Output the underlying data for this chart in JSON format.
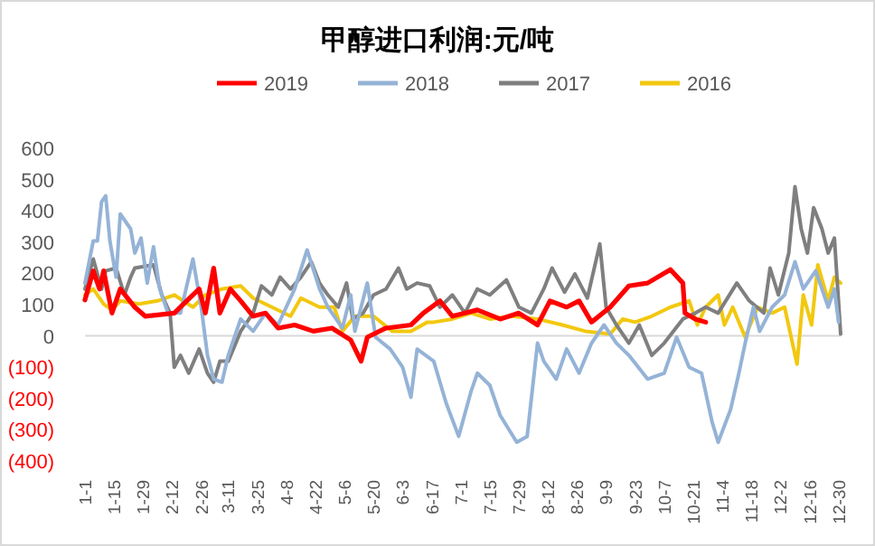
{
  "chart_data": {
    "type": "line",
    "title": "甲醇进口利润:元/吨",
    "legend": "top",
    "grid": false,
    "xlim": [
      "--01-01",
      "--12-31"
    ],
    "xticks": [
      {
        "value": "--01-01",
        "label": "1-1"
      },
      {
        "value": "--01-15",
        "label": "1-15"
      },
      {
        "value": "--01-29",
        "label": "1-29"
      },
      {
        "value": "--02-12",
        "label": "2-12"
      },
      {
        "value": "--02-26",
        "label": "2-26"
      },
      {
        "value": "--03-11",
        "label": "3-11"
      },
      {
        "value": "--03-25",
        "label": "3-25"
      },
      {
        "value": "--04-08",
        "label": "4-8"
      },
      {
        "value": "--04-22",
        "label": "4-22"
      },
      {
        "value": "--05-06",
        "label": "5-6"
      },
      {
        "value": "--05-20",
        "label": "5-20"
      },
      {
        "value": "--06-03",
        "label": "6-3"
      },
      {
        "value": "--06-17",
        "label": "6-17"
      },
      {
        "value": "--07-01",
        "label": "7-1"
      },
      {
        "value": "--07-15",
        "label": "7-15"
      },
      {
        "value": "--07-29",
        "label": "7-29"
      },
      {
        "value": "--08-12",
        "label": "8-12"
      },
      {
        "value": "--08-26",
        "label": "8-26"
      },
      {
        "value": "--09-09",
        "label": "9-9"
      },
      {
        "value": "--09-23",
        "label": "9-23"
      },
      {
        "value": "--10-07",
        "label": "10-7"
      },
      {
        "value": "--10-21",
        "label": "10-21"
      },
      {
        "value": "--11-04",
        "label": "11-4"
      },
      {
        "value": "--11-18",
        "label": "11-18"
      },
      {
        "value": "--12-02",
        "label": "12-2"
      },
      {
        "value": "--12-16",
        "label": "12-16"
      },
      {
        "value": "--12-30",
        "label": "12-30"
      }
    ],
    "ylim": [
      -400,
      600
    ],
    "yticks": [
      600,
      500,
      400,
      300,
      200,
      100,
      0,
      {
        "value": -100,
        "label": "(100)"
      },
      {
        "value": -200,
        "label": "(200)"
      },
      {
        "value": -300,
        "label": "(300)"
      },
      {
        "value": -400,
        "label": "(400)"
      }
    ],
    "ref_lines": [
      {
        "axis": "y",
        "value": 0,
        "color": "#d9d9d9"
      }
    ],
    "series": [
      {
        "name": "2019",
        "color": "#ff0000",
        "x": [
          "--01-01",
          "--01-05",
          "--01-08",
          "--01-10",
          "--01-14",
          "--01-18",
          "--01-25",
          "--01-30",
          "--02-13",
          "--02-19",
          "--02-25",
          "--02-28",
          "--03-04",
          "--03-07",
          "--03-12",
          "--03-17",
          "--03-23",
          "--03-29",
          "--04-04",
          "--04-12",
          "--04-21",
          "--04-30",
          "--05-09",
          "--05-14",
          "--05-17",
          "--05-26",
          "--06-07",
          "--06-13",
          "--06-21",
          "--06-27",
          "--07-09",
          "--07-20",
          "--07-29",
          "--08-07",
          "--08-13",
          "--08-21",
          "--08-27",
          "--09-02",
          "--09-11",
          "--09-20",
          "--09-29",
          "--10-10",
          "--10-16",
          "--10-17",
          "--10-22",
          "--10-27"
        ],
        "values": [
          115,
          208,
          150,
          208,
          73,
          150,
          92,
          63,
          73,
          112,
          150,
          73,
          217,
          73,
          150,
          112,
          63,
          73,
          25,
          35,
          15,
          25,
          -13,
          -81,
          -4,
          25,
          35,
          73,
          112,
          63,
          83,
          54,
          73,
          35,
          112,
          92,
          112,
          44,
          92,
          160,
          169,
          212,
          169,
          73,
          54,
          44
        ]
      },
      {
        "name": "2018",
        "color": "#95b3d7",
        "x": [
          "--01-01",
          "--01-05",
          "--01-07",
          "--01-09",
          "--01-11",
          "--01-13",
          "--01-16",
          "--01-18",
          "--01-23",
          "--01-25",
          "--01-28",
          "--01-31",
          "--02-03",
          "--02-06",
          "--02-10",
          "--02-16",
          "--02-22",
          "--02-26",
          "--03-01",
          "--03-04",
          "--03-08",
          "--03-11",
          "--03-17",
          "--03-23",
          "--03-29",
          "--04-04",
          "--04-12",
          "--04-18",
          "--04-24",
          "--04-28",
          "--05-05",
          "--05-09",
          "--05-11",
          "--05-17",
          "--05-21",
          "--05-28",
          "--06-03",
          "--06-07",
          "--06-10",
          "--06-18",
          "--06-24",
          "--06-30",
          "--07-06",
          "--07-09",
          "--07-15",
          "--07-20",
          "--07-28",
          "--08-02",
          "--08-07",
          "--08-10",
          "--08-16",
          "--08-21",
          "--08-27",
          "--09-02",
          "--09-08",
          "--09-14",
          "--09-20",
          "--09-29",
          "--10-07",
          "--10-13",
          "--10-19",
          "--10-25",
          "--10-30",
          "--11-02",
          "--11-08",
          "--11-12",
          "--11-15",
          "--11-19",
          "--11-22",
          "--11-28",
          "--12-04",
          "--12-09",
          "--12-13",
          "--12-19",
          "--12-25",
          "--12-28",
          "--12-30"
        ],
        "values": [
          169,
          304,
          304,
          429,
          448,
          304,
          188,
          390,
          342,
          265,
          313,
          169,
          285,
          150,
          73,
          73,
          246,
          92,
          -62,
          -138,
          -148,
          -62,
          54,
          15,
          73,
          35,
          150,
          275,
          150,
          92,
          25,
          131,
          15,
          169,
          -4,
          -42,
          -100,
          -196,
          -42,
          -81,
          -215,
          -321,
          -177,
          -119,
          -158,
          -254,
          -340,
          -321,
          -23,
          -81,
          -138,
          -42,
          -119,
          -23,
          35,
          -23,
          -62,
          -138,
          -119,
          -4,
          -100,
          -119,
          -273,
          -340,
          -235,
          -119,
          -23,
          92,
          15,
          92,
          131,
          237,
          150,
          208,
          92,
          150,
          44
        ]
      },
      {
        "name": "2017",
        "color": "#7f7f7f",
        "x": [
          "--01-01",
          "--01-05",
          "--01-09",
          "--01-11",
          "--01-16",
          "--01-20",
          "--01-23",
          "--01-25",
          "--02-03",
          "--02-07",
          "--02-11",
          "--02-13",
          "--02-16",
          "--02-20",
          "--02-25",
          "--03-01",
          "--03-04",
          "--03-07",
          "--03-11",
          "--03-17",
          "--03-23",
          "--03-27",
          "--04-01",
          "--04-05",
          "--04-10",
          "--04-15",
          "--04-20",
          "--04-24",
          "--04-28",
          "--05-03",
          "--05-07",
          "--05-10",
          "--05-15",
          "--05-20",
          "--05-26",
          "--06-01",
          "--06-05",
          "--06-10",
          "--06-16",
          "--06-21",
          "--06-27",
          "--07-03",
          "--07-09",
          "--07-15",
          "--07-23",
          "--07-29",
          "--08-04",
          "--08-10",
          "--08-14",
          "--08-20",
          "--08-25",
          "--08-31",
          "--09-06",
          "--09-09",
          "--09-14",
          "--09-20",
          "--09-25",
          "--10-01",
          "--10-07",
          "--10-16",
          "--10-22",
          "--10-27",
          "--11-02",
          "--11-11",
          "--11-17",
          "--11-24",
          "--11-27",
          "--12-01",
          "--12-06",
          "--12-09",
          "--12-12",
          "--12-15",
          "--12-18",
          "--12-22",
          "--12-25",
          "--12-28",
          "--12-31"
        ],
        "values": [
          150,
          246,
          150,
          208,
          217,
          131,
          188,
          217,
          227,
          131,
          73,
          -100,
          -62,
          -119,
          -42,
          -119,
          -148,
          -81,
          -81,
          15,
          73,
          160,
          131,
          188,
          150,
          188,
          237,
          169,
          131,
          92,
          169,
          54,
          73,
          131,
          150,
          217,
          150,
          169,
          160,
          92,
          131,
          73,
          150,
          131,
          179,
          92,
          73,
          150,
          217,
          140,
          198,
          121,
          294,
          92,
          35,
          -23,
          35,
          -62,
          -23,
          54,
          73,
          92,
          73,
          169,
          112,
          73,
          217,
          131,
          265,
          477,
          342,
          265,
          410,
          342,
          265,
          313,
          6
        ]
      },
      {
        "name": "2016",
        "color": "#f2c80f",
        "x": [
          "--01-01",
          "--01-05",
          "--01-10",
          "--01-14",
          "--01-18",
          "--01-27",
          "--02-05",
          "--02-13",
          "--02-22",
          "--02-28",
          "--03-08",
          "--03-17",
          "--03-23",
          "--04-01",
          "--04-10",
          "--04-15",
          "--04-24",
          "--05-01",
          "--05-05",
          "--05-11",
          "--05-20",
          "--05-29",
          "--06-07",
          "--06-15",
          "--06-18",
          "--06-27",
          "--07-06",
          "--07-15",
          "--07-26",
          "--08-07",
          "--08-19",
          "--08-30",
          "--09-11",
          "--09-17",
          "--09-23",
          "--10-01",
          "--10-10",
          "--10-19",
          "--10-23",
          "--10-27",
          "--11-02",
          "--11-05",
          "--11-09",
          "--11-15",
          "--11-21",
          "--11-28",
          "--12-04",
          "--12-10",
          "--12-13",
          "--12-17",
          "--12-20",
          "--12-25",
          "--12-28",
          "--12-31"
        ],
        "values": [
          131,
          150,
          102,
          83,
          112,
          102,
          112,
          131,
          92,
          131,
          150,
          160,
          121,
          92,
          63,
          121,
          92,
          92,
          15,
          63,
          63,
          15,
          15,
          44,
          44,
          54,
          73,
          54,
          63,
          54,
          35,
          15,
          6,
          54,
          44,
          63,
          92,
          112,
          35,
          92,
          131,
          35,
          92,
          -4,
          92,
          73,
          92,
          -90,
          131,
          35,
          227,
          112,
          188,
          169
        ]
      }
    ]
  }
}
